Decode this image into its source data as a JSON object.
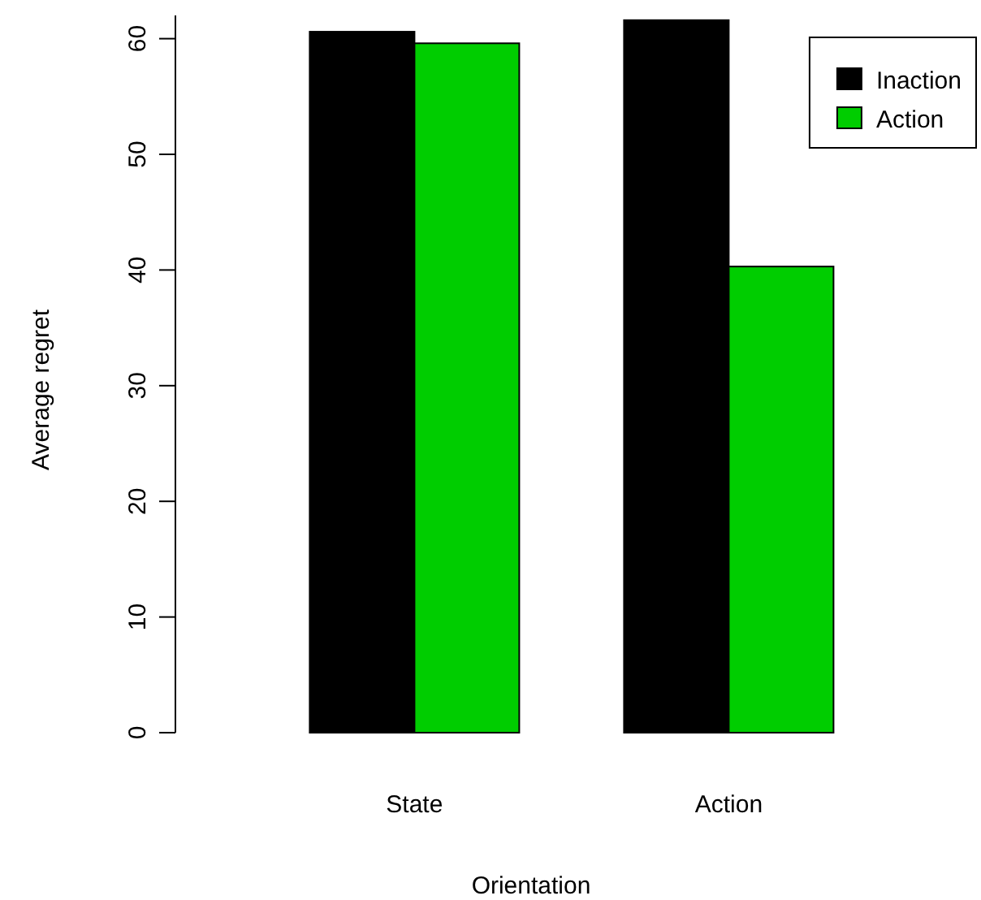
{
  "chart_data": {
    "type": "bar",
    "xlabel": "Orientation",
    "ylabel": "Average regret",
    "categories": [
      "State",
      "Action"
    ],
    "series": [
      {
        "name": "Inaction",
        "color": "#000000",
        "values": [
          60.6,
          61.6
        ]
      },
      {
        "name": "Action",
        "color": "#00cd00",
        "values": [
          59.6,
          40.3
        ]
      }
    ],
    "ylim": [
      0,
      62
    ],
    "yticks": [
      0,
      10,
      20,
      30,
      40,
      50,
      60
    ],
    "legend": "top right",
    "grid": false
  }
}
